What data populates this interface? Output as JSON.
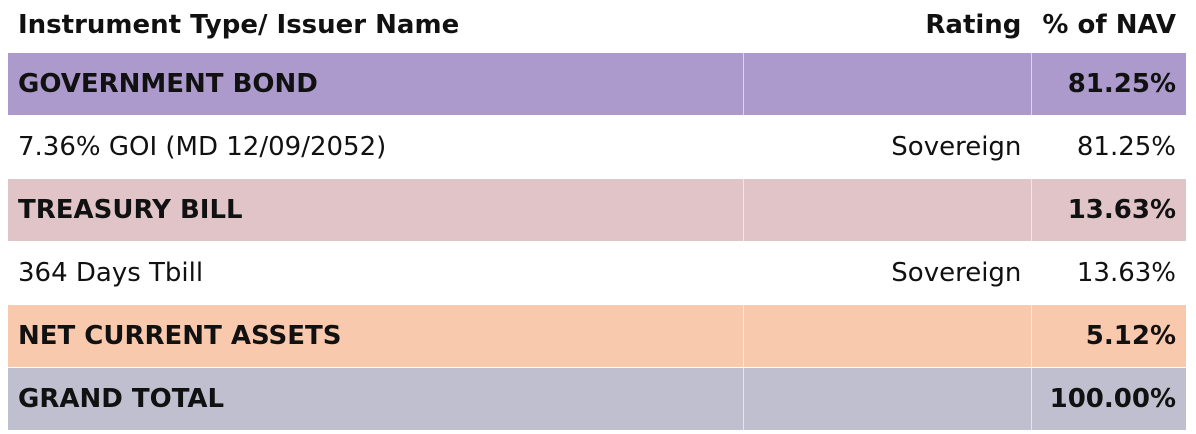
{
  "table": {
    "header": [
      "Instrument Type/ Issuer Name",
      "Rating",
      "% of NAV"
    ],
    "rows": [
      [
        "GOVERNMENT BOND",
        "81.25%"
      ],
      [
        "7.36% GOI (MD 12/09/2052)",
        "Sovereign",
        "81.25%"
      ],
      [
        "TREASURY BILL",
        "13.63%"
      ],
      [
        "364 Days Tbill",
        "Sovereign",
        "13.63%"
      ],
      [
        "NET CURRENT ASSETS",
        "5.12%"
      ],
      [
        "GRAND TOTAL",
        "100.00%"
      ]
    ]
  }
}
